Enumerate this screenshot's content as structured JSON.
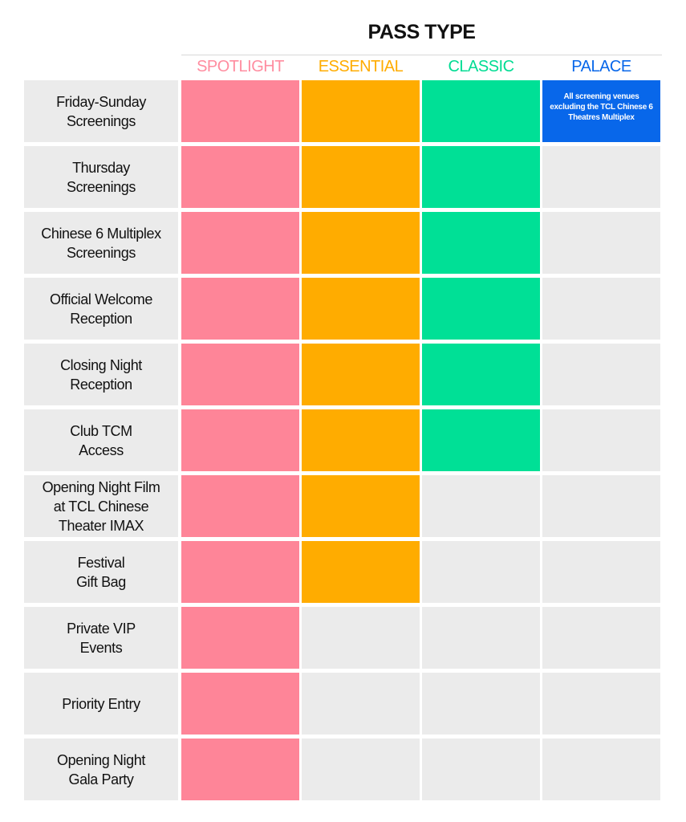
{
  "title": "PASS TYPE",
  "columns": [
    {
      "label": "SPOTLIGHT",
      "color": "#fe8598",
      "text_color": "#ff8da0"
    },
    {
      "label": "ESSENTIAL",
      "color": "#ffac00",
      "text_color": "#ffac00"
    },
    {
      "label": "CLASSIC",
      "color": "#00e096",
      "text_color": "#00dc93"
    },
    {
      "label": "PALACE",
      "color": "#0867ea",
      "text_color": "#0867ea"
    }
  ],
  "empty_color": "#ebebeb",
  "rows": [
    {
      "label": "Friday-Sunday\nScreenings",
      "included": [
        true,
        true,
        true,
        true
      ],
      "notes": [
        "",
        "",
        "",
        "All screening venues excluding the TCL Chinese 6 Theatres Multiplex"
      ]
    },
    {
      "label": "Thursday\nScreenings",
      "included": [
        true,
        true,
        true,
        false
      ],
      "notes": [
        "",
        "",
        "",
        ""
      ]
    },
    {
      "label": "Chinese 6 Multiplex\nScreenings",
      "included": [
        true,
        true,
        true,
        false
      ],
      "notes": [
        "",
        "",
        "",
        ""
      ]
    },
    {
      "label": "Official Welcome\nReception",
      "included": [
        true,
        true,
        true,
        false
      ],
      "notes": [
        "",
        "",
        "",
        ""
      ]
    },
    {
      "label": "Closing Night\nReception",
      "included": [
        true,
        true,
        true,
        false
      ],
      "notes": [
        "",
        "",
        "",
        ""
      ]
    },
    {
      "label": "Club TCM\nAccess",
      "included": [
        true,
        true,
        true,
        false
      ],
      "notes": [
        "",
        "",
        "",
        ""
      ]
    },
    {
      "label": "Opening  Night Film\nat TCL Chinese\nTheater IMAX",
      "included": [
        true,
        true,
        false,
        false
      ],
      "notes": [
        "",
        "",
        "",
        ""
      ]
    },
    {
      "label": "Festival\nGift Bag",
      "included": [
        true,
        true,
        false,
        false
      ],
      "notes": [
        "",
        "",
        "",
        ""
      ]
    },
    {
      "label": "Private VIP\nEvents",
      "included": [
        true,
        false,
        false,
        false
      ],
      "notes": [
        "",
        "",
        "",
        ""
      ]
    },
    {
      "label": "Priority Entry",
      "included": [
        true,
        false,
        false,
        false
      ],
      "notes": [
        "",
        "",
        "",
        ""
      ]
    },
    {
      "label": "Opening Night\nGala Party",
      "included": [
        true,
        false,
        false,
        false
      ],
      "notes": [
        "",
        "",
        "",
        ""
      ]
    }
  ]
}
